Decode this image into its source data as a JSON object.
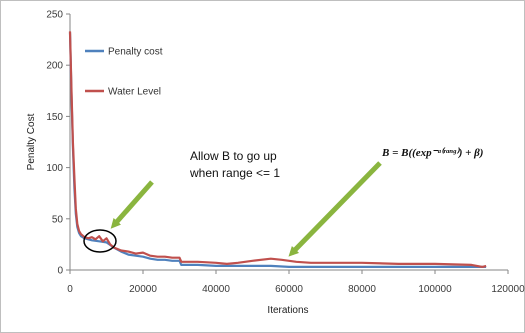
{
  "chart_data": {
    "type": "line",
    "title": "",
    "xlabel": "Iterations",
    "ylabel": "Penalty Cost",
    "xlim": [
      0,
      120000
    ],
    "ylim": [
      0,
      250
    ],
    "x_ticks": [
      "0",
      "20000",
      "40000",
      "60000",
      "80000",
      "100000",
      "120000"
    ],
    "y_ticks": [
      "0",
      "50",
      "100",
      "150",
      "200",
      "250"
    ],
    "grid": false,
    "legend_position": "top-left",
    "series": [
      {
        "name": "Penalty cost",
        "color": "#4f81bd",
        "x": [
          0,
          400,
          800,
          1200,
          1600,
          2000,
          2500,
          3000,
          4000,
          5000,
          6000,
          8000,
          10000,
          12000,
          14000,
          16000,
          18000,
          20000,
          22000,
          24000,
          26000,
          28000,
          30000,
          30500,
          35000,
          40000,
          45000,
          50000,
          55000,
          60000,
          65000,
          70000,
          80000,
          90000,
          100000,
          110000,
          114000
        ],
        "y": [
          232,
          170,
          120,
          80,
          55,
          42,
          36,
          33,
          31,
          30,
          29,
          28,
          27,
          22,
          18,
          15,
          14,
          13,
          11,
          10,
          10,
          9,
          9,
          5,
          5,
          4,
          4,
          4,
          4,
          3,
          3,
          3,
          3,
          3,
          3,
          3,
          3
        ]
      },
      {
        "name": "Water Level",
        "color": "#c0504d",
        "x": [
          0,
          400,
          800,
          1200,
          1600,
          2000,
          2500,
          3000,
          4000,
          5000,
          6000,
          7000,
          8000,
          9000,
          10000,
          11000,
          12000,
          14000,
          16000,
          18000,
          20000,
          22000,
          24000,
          26000,
          28000,
          30000,
          30500,
          35000,
          40000,
          43000,
          46000,
          50000,
          55000,
          58000,
          62000,
          66000,
          70000,
          80000,
          90000,
          100000,
          110000,
          113000,
          114000
        ],
        "y": [
          233,
          175,
          125,
          90,
          60,
          45,
          38,
          35,
          32,
          31,
          32,
          30,
          33,
          28,
          31,
          25,
          22,
          19,
          18,
          16,
          17,
          14,
          13,
          13,
          12,
          12,
          8,
          8,
          7,
          6,
          7,
          9,
          11,
          10,
          8,
          7,
          7,
          7,
          6,
          6,
          5,
          3,
          4
        ]
      }
    ],
    "annotations": [
      {
        "text_lines": [
          "Allow B to go up",
          "when range <= 1"
        ]
      },
      {
        "text": "B = B((exp⁻ᵃ⁽ʳᵃⁿᵍ⁾) + β)"
      }
    ]
  }
}
